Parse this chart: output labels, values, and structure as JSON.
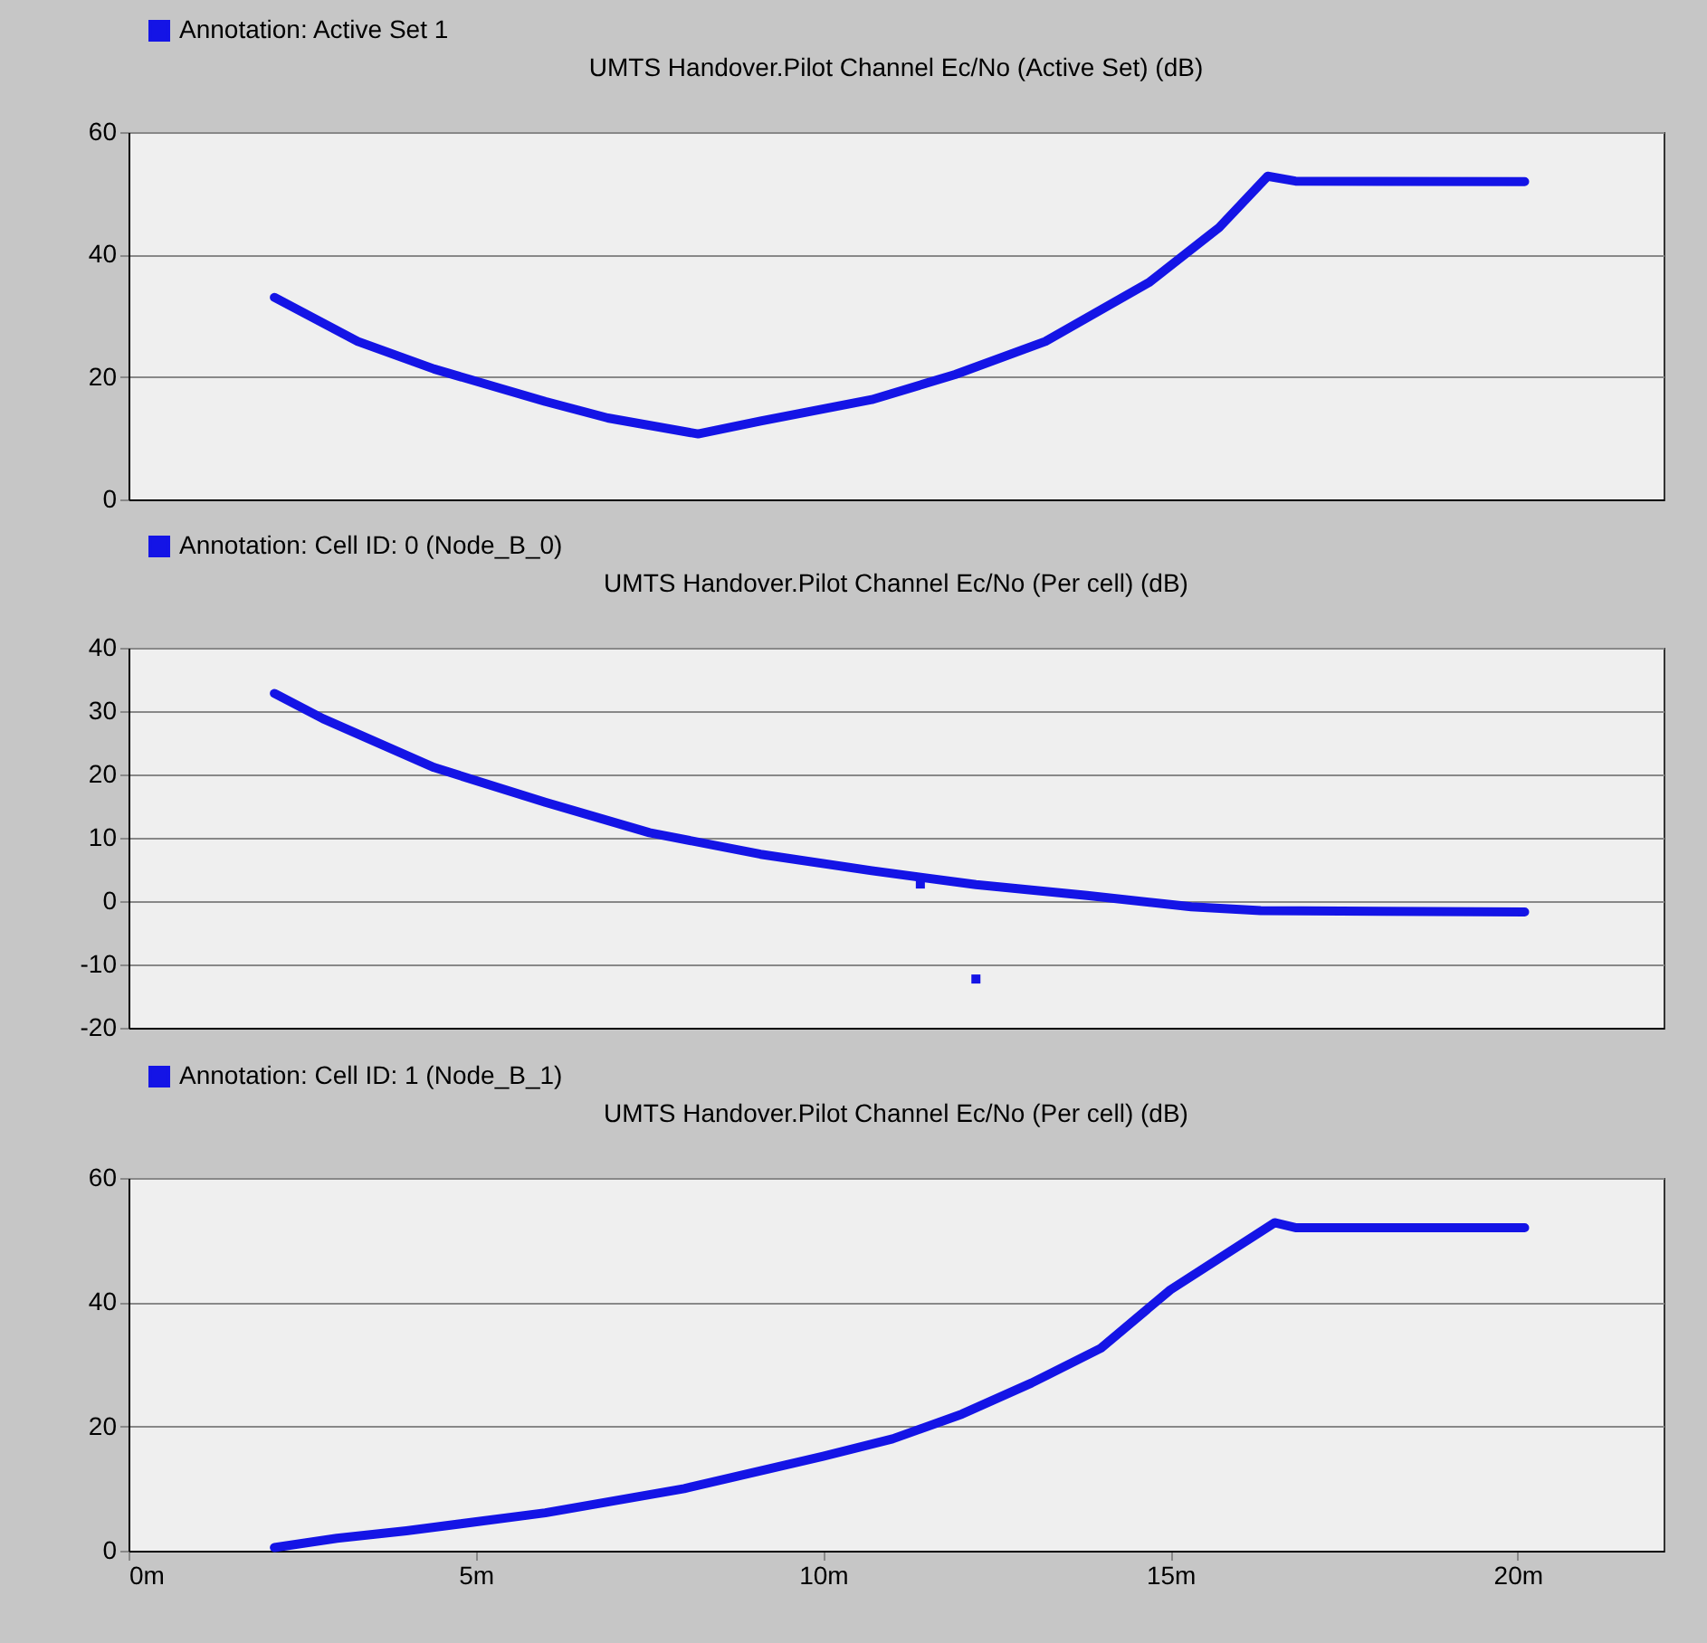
{
  "chart_data": [
    {
      "type": "line",
      "title": "UMTS Handover.Pilot Channel Ec/No (Active Set) (dB)",
      "legend": "top left",
      "grid": "y",
      "marker": "none",
      "tick_labels": "y",
      "xlim": [
        0,
        22.1
      ],
      "ylim": [
        0,
        60
      ],
      "yticks": [
        0,
        20,
        40,
        60
      ],
      "series": [
        {
          "name": "Annotation: Active Set 1",
          "color": "#1414e6",
          "x": [
            2.1,
            3.3,
            4.4,
            6.0,
            6.9,
            8.2,
            9.1,
            10.7,
            11.9,
            13.2,
            14.7,
            15.7,
            16.4,
            16.8,
            20.1
          ],
          "values": [
            33,
            25.8,
            21.3,
            16,
            13.3,
            10.7,
            12.8,
            16.3,
            20.4,
            25.8,
            35.5,
            44.4,
            52.8,
            52,
            51.9
          ]
        }
      ]
    },
    {
      "type": "line",
      "title": "UMTS Handover.Pilot Channel Ec/No (Per cell) (dB)",
      "legend": "top left",
      "grid": "y",
      "marker": "none",
      "tick_labels": "y",
      "xlim": [
        0,
        22.1
      ],
      "ylim": [
        -20,
        40
      ],
      "yticks": [
        -20,
        -10,
        0,
        10,
        20,
        30,
        40
      ],
      "series": [
        {
          "name": "Annotation: Cell ID: 0 (Node_B_0)",
          "color": "#1414e6",
          "x": [
            2.1,
            2.8,
            4.4,
            6.0,
            7.5,
            9.1,
            10.7,
            12.2,
            13.8,
            15.3,
            16.3,
            20.1
          ],
          "values": [
            32.8,
            28.8,
            21.1,
            15.6,
            10.8,
            7.4,
            4.8,
            2.6,
            0.9,
            -0.9,
            -1.5,
            -1.7
          ]
        },
        {
          "type": "scatter",
          "marker": "square",
          "color": "#1414e6",
          "x": [
            11.4,
            12.2
          ],
          "values": [
            2.7,
            -12.3
          ]
        }
      ]
    },
    {
      "type": "line",
      "title": "UMTS Handover.Pilot Channel Ec/No (Per cell) (dB)",
      "legend": "top left",
      "grid": "y",
      "marker": "none",
      "xlim": [
        0,
        22.1
      ],
      "ylim": [
        0,
        60
      ],
      "yticks": [
        0,
        20,
        40,
        60
      ],
      "xticks": [
        {
          "value": 0,
          "label": "0m"
        },
        {
          "value": 5,
          "label": "5m"
        },
        {
          "value": 10,
          "label": "10m"
        },
        {
          "value": 15,
          "label": "15m"
        },
        {
          "value": 20,
          "label": "20m"
        }
      ],
      "series": [
        {
          "name": "Annotation: Cell ID: 1 (Node_B_1)",
          "color": "#1414e6",
          "x": [
            2.1,
            3,
            4,
            6,
            8,
            10,
            11,
            12,
            13,
            14,
            15,
            16.5,
            16.8,
            20.1
          ],
          "values": [
            0.5,
            2,
            3.2,
            6.1,
            10,
            15.2,
            18,
            22,
            27,
            32.6,
            42,
            52.8,
            52,
            52
          ]
        }
      ]
    }
  ]
}
